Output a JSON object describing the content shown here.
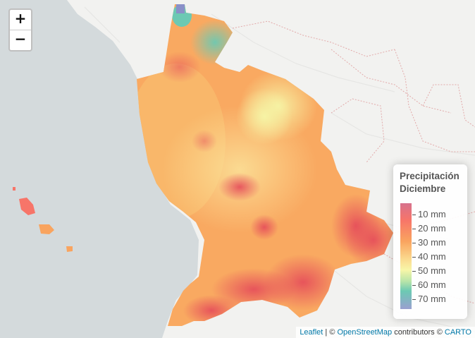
{
  "zoom": {
    "in_label": "+",
    "out_label": "−"
  },
  "legend": {
    "title_line1": "Precipitación",
    "title_line2": "Diciembre",
    "labels": [
      "10 mm",
      "20 mm",
      "30 mm",
      "40 mm",
      "50 mm",
      "60 mm",
      "70 mm"
    ]
  },
  "attribution": {
    "leaflet": "Leaflet",
    "sep": " | © ",
    "osm": "OpenStreetMap",
    "contrib": " contributors © ",
    "carto": "CARTO"
  },
  "colors": {
    "ocean": "#d4dadc",
    "land": "#f2f2f0",
    "border": "#e2a9a9",
    "low": "#d7718d",
    "high": "#9aa0d0"
  }
}
